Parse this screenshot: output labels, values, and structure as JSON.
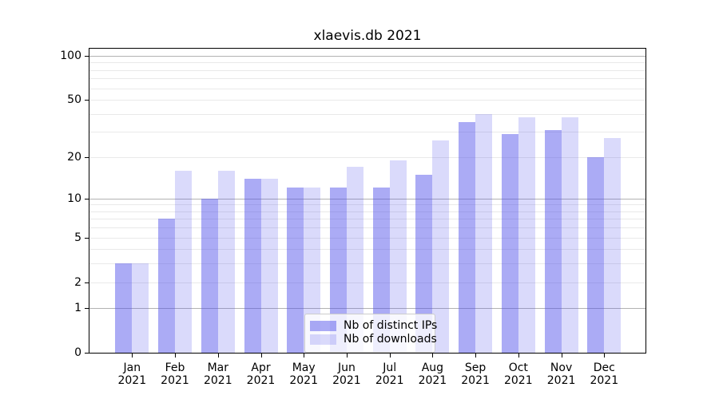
{
  "title": "xlaevis.db 2021",
  "colors": {
    "ips_bar": "rgba(80,80,235,0.48)",
    "downloads_bar": "rgba(80,80,235,0.21)",
    "grid_major": "#b2b2b2",
    "grid_minor": "#e9e9e9",
    "axis": "#000000",
    "legend_border": "#cccccc"
  },
  "chart_data": {
    "type": "bar",
    "title": "xlaevis.db 2021",
    "categories": [
      "Jan 2021",
      "Feb 2021",
      "Mar 2021",
      "Apr 2021",
      "May 2021",
      "Jun 2021",
      "Jul 2021",
      "Aug 2021",
      "Sep 2021",
      "Oct 2021",
      "Nov 2021",
      "Dec 2021"
    ],
    "series": [
      {
        "name": "Nb of distinct IPs",
        "values": [
          3,
          7,
          10,
          14,
          12,
          12,
          12,
          15,
          35,
          29,
          31,
          20
        ]
      },
      {
        "name": "Nb of downloads",
        "values": [
          3,
          16,
          16,
          14,
          12,
          17,
          19,
          26,
          40,
          38,
          38,
          27
        ]
      }
    ],
    "xlabel": "",
    "ylabel": "",
    "yscale": "symlog",
    "yticks": [
      0,
      1,
      2,
      5,
      10,
      20,
      50,
      100
    ],
    "major_gridlines": [
      1,
      10,
      100
    ],
    "minor_gridlines": [
      2,
      3,
      4,
      5,
      6,
      7,
      8,
      9,
      20,
      30,
      40,
      50,
      60,
      70,
      80,
      90
    ],
    "ylim": [
      0,
      113
    ],
    "grid": "on",
    "legend_position": "lower center"
  }
}
